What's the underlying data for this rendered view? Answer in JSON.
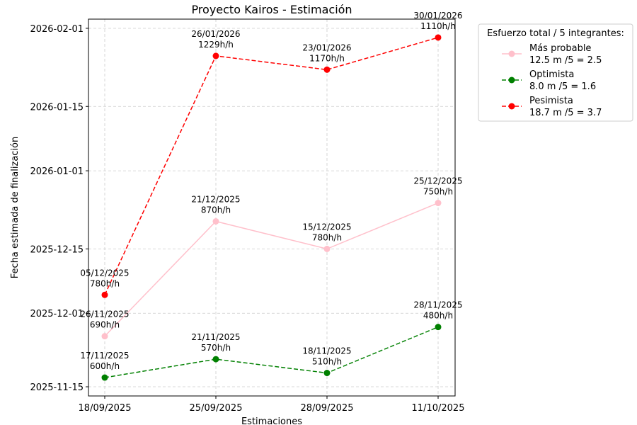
{
  "chart_data": {
    "type": "line",
    "title": "Proyecto Kairos - Estimación",
    "xlabel": "Estimaciones",
    "ylabel": "Fecha estimada de finalización",
    "categories": [
      "18/09/2025",
      "25/09/2025",
      "28/09/2025",
      "11/10/2025"
    ],
    "y_ticks": [
      "2025-11-15",
      "2025-12-01",
      "2025-12-15",
      "2026-01-01",
      "2026-01-15",
      "2026-02-01"
    ],
    "ylim": [
      "2025-11-13",
      "2026-02-03"
    ],
    "grid": true,
    "legend": {
      "title": "Esfuerzo total / 5 integrantes:",
      "placement": "outside-top-right"
    },
    "series": [
      {
        "name": "Más probable",
        "legend_detail": " 12.5 m /5 = 2.5",
        "color": "#ffc0cb",
        "linestyle": "solid",
        "dates": [
          "2025-11-26",
          "2025-12-21",
          "2025-12-15",
          "2025-12-25"
        ],
        "labels_date": [
          "26/11/2025",
          "21/12/2025",
          "15/12/2025",
          "25/12/2025"
        ],
        "labels_hours": [
          "690h/h",
          "870h/h",
          "780h/h",
          "750h/h"
        ]
      },
      {
        "name": "Optimista",
        "legend_detail": " 8.0 m /5 = 1.6",
        "color": "#008000",
        "linestyle": "dashed",
        "dates": [
          "2025-11-17",
          "2025-11-21",
          "2025-11-18",
          "2025-11-28"
        ],
        "labels_date": [
          "17/11/2025",
          "21/11/2025",
          "18/11/2025",
          "28/11/2025"
        ],
        "labels_hours": [
          "600h/h",
          "570h/h",
          "510h/h",
          "480h/h"
        ]
      },
      {
        "name": "Pesimista",
        "legend_detail": " 18.7 m /5 = 3.7",
        "color": "#ff0000",
        "linestyle": "dashed",
        "dates": [
          "2025-12-05",
          "2026-01-26",
          "2026-01-23",
          "2026-01-30"
        ],
        "labels_date": [
          "05/12/2025",
          "26/01/2026",
          "23/01/2026",
          "30/01/2026"
        ],
        "labels_hours": [
          "780h/h",
          "1229h/h",
          "1170h/h",
          "1110h/h"
        ]
      }
    ]
  }
}
